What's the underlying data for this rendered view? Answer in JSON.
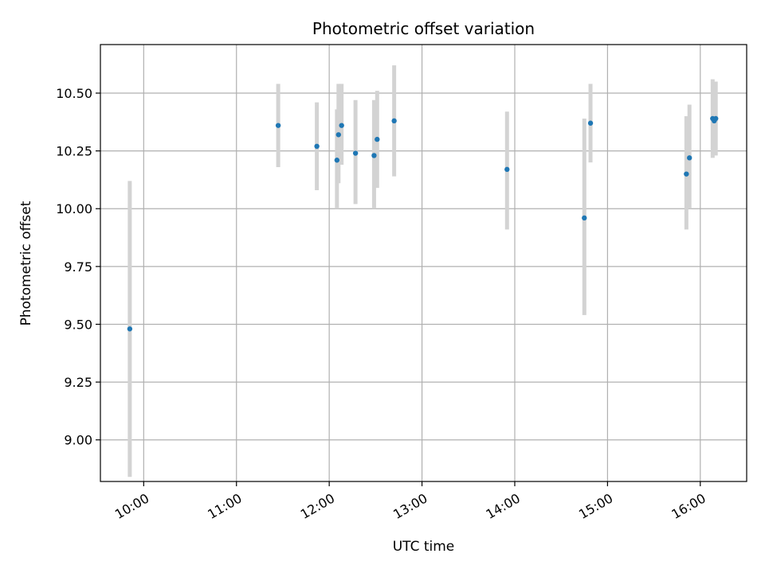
{
  "chart_data": {
    "type": "scatter",
    "title": "Photometric offset variation",
    "xlabel": "UTC time",
    "ylabel": "Photometric offset",
    "x_ticks": [
      "10:00",
      "11:00",
      "12:00",
      "13:00",
      "14:00",
      "15:00",
      "16:00"
    ],
    "y_ticks": [
      "9.00",
      "9.25",
      "9.50",
      "9.75",
      "10.00",
      "10.25",
      "10.50"
    ],
    "xlim": [
      "09:32",
      "16:30"
    ],
    "ylim": [
      8.82,
      10.71
    ],
    "grid": true,
    "marker_color": "#1f77b4",
    "errorbar_color": "#d3d3d3",
    "points": [
      {
        "x": "09:51",
        "y": 9.48,
        "low": 8.84,
        "high": 10.12
      },
      {
        "x": "11:27",
        "y": 10.36,
        "low": 10.18,
        "high": 10.54
      },
      {
        "x": "11:52",
        "y": 10.27,
        "low": 10.08,
        "high": 10.46
      },
      {
        "x": "12:05",
        "y": 10.21,
        "low": 10.0,
        "high": 10.43
      },
      {
        "x": "12:06",
        "y": 10.32,
        "low": 10.11,
        "high": 10.54
      },
      {
        "x": "12:08",
        "y": 10.36,
        "low": 10.19,
        "high": 10.54
      },
      {
        "x": "12:17",
        "y": 10.24,
        "low": 10.02,
        "high": 10.47
      },
      {
        "x": "12:29",
        "y": 10.23,
        "low": 10.0,
        "high": 10.47
      },
      {
        "x": "12:31",
        "y": 10.3,
        "low": 10.09,
        "high": 10.51
      },
      {
        "x": "12:42",
        "y": 10.38,
        "low": 10.14,
        "high": 10.62
      },
      {
        "x": "13:55",
        "y": 10.17,
        "low": 9.91,
        "high": 10.42
      },
      {
        "x": "14:45",
        "y": 9.96,
        "low": 9.54,
        "high": 10.39
      },
      {
        "x": "14:49",
        "y": 10.37,
        "low": 10.2,
        "high": 10.54
      },
      {
        "x": "15:51",
        "y": 10.15,
        "low": 9.91,
        "high": 10.4
      },
      {
        "x": "15:53",
        "y": 10.22,
        "low": 10.0,
        "high": 10.45
      },
      {
        "x": "16:08",
        "y": 10.39,
        "low": 10.22,
        "high": 10.56
      },
      {
        "x": "16:09",
        "y": 10.38,
        "low": 10.24,
        "high": 10.53
      },
      {
        "x": "16:10",
        "y": 10.39,
        "low": 10.23,
        "high": 10.55
      }
    ]
  }
}
